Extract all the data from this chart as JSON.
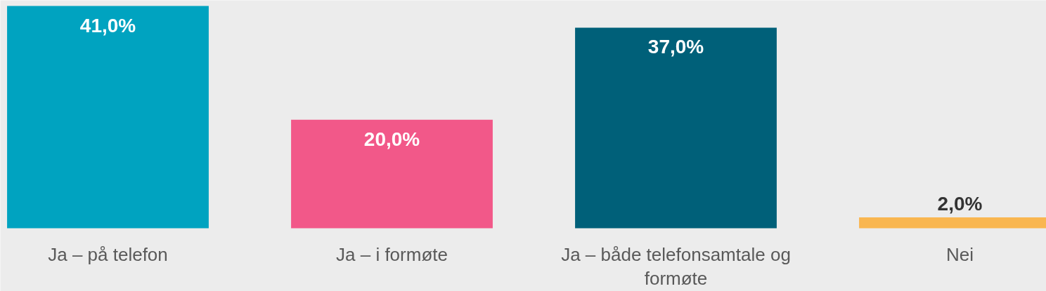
{
  "chart_data": {
    "type": "bar",
    "categories": [
      "Ja – på telefon",
      "Ja – i formøte",
      "Ja – både telefonsamtale og formøte",
      "Nei"
    ],
    "values": [
      41.0,
      20.0,
      37.0,
      2.0
    ],
    "colors": [
      "#00a3c0",
      "#f25889",
      "#006079",
      "#f9b650"
    ],
    "data_labels": true,
    "value_labels": [
      "41,0%",
      "20,0%",
      "37,0%",
      "2,0%"
    ]
  }
}
